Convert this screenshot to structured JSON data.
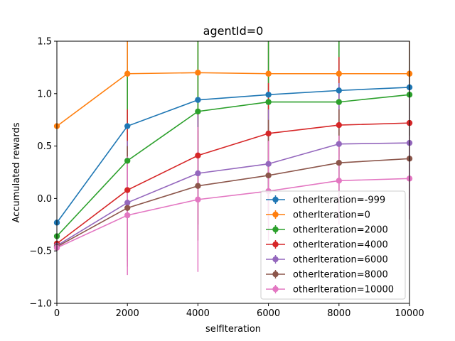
{
  "chart_data": {
    "type": "line",
    "title": "agentId=0",
    "xlabel": "selfIteration",
    "ylabel": "Accumulated rewards",
    "xlim": [
      0,
      10000
    ],
    "ylim": [
      -1.0,
      1.5
    ],
    "xticks": [
      0,
      2000,
      4000,
      6000,
      8000,
      10000
    ],
    "xtick_labels": [
      "0",
      "2000",
      "4000",
      "6000",
      "8000",
      "10000"
    ],
    "yticks": [
      -1.0,
      -0.5,
      0.0,
      0.5,
      1.0,
      1.5
    ],
    "ytick_labels": [
      "−1.0",
      "−0.5",
      "0.0",
      "0.5",
      "1.0",
      "1.5"
    ],
    "grid": false,
    "legend_position": "lower-right",
    "x": [
      0,
      2000,
      4000,
      6000,
      8000,
      10000
    ],
    "series": [
      {
        "name": "otherIteration=-999",
        "color": "#1f77b4",
        "values": [
          -0.23,
          0.69,
          0.94,
          0.99,
          1.03,
          1.06
        ],
        "lower": [
          -0.23,
          0.0,
          0.0,
          0.0,
          0.0,
          0.0
        ],
        "upper": [
          -0.23,
          1.5,
          1.5,
          1.5,
          1.5,
          1.5
        ]
      },
      {
        "name": "otherIteration=0",
        "color": "#ff7f0e",
        "values": [
          0.69,
          1.19,
          1.2,
          1.19,
          1.19,
          1.19
        ],
        "lower": [
          0.69,
          0.4,
          0.4,
          0.4,
          0.4,
          0.4
        ],
        "upper": [
          0.69,
          1.5,
          1.5,
          1.5,
          1.5,
          1.5
        ]
      },
      {
        "name": "otherIteration=2000",
        "color": "#2ca02c",
        "values": [
          -0.36,
          0.36,
          0.83,
          0.92,
          0.92,
          0.99
        ],
        "lower": [
          -0.36,
          -0.2,
          0.1,
          0.2,
          0.2,
          0.3
        ],
        "upper": [
          -0.36,
          1.2,
          1.5,
          1.5,
          1.5,
          1.5
        ]
      },
      {
        "name": "otherIteration=4000",
        "color": "#d62728",
        "values": [
          -0.43,
          0.08,
          0.41,
          0.62,
          0.7,
          0.72
        ],
        "lower": [
          -0.43,
          -0.55,
          -0.25,
          -0.1,
          0.0,
          0.0
        ],
        "upper": [
          -0.43,
          0.85,
          0.85,
          1.1,
          1.35,
          1.5
        ]
      },
      {
        "name": "otherIteration=6000",
        "color": "#9467bd",
        "values": [
          -0.45,
          -0.04,
          0.24,
          0.33,
          0.52,
          0.53
        ],
        "lower": [
          -0.45,
          -0.6,
          -0.3,
          -0.2,
          -0.1,
          -0.1
        ],
        "upper": [
          -0.45,
          0.55,
          0.8,
          0.85,
          1.1,
          1.1
        ]
      },
      {
        "name": "otherIteration=8000",
        "color": "#8c564b",
        "values": [
          -0.46,
          -0.09,
          0.12,
          0.22,
          0.34,
          0.38
        ],
        "lower": [
          -0.46,
          -0.65,
          -0.4,
          -0.3,
          -0.2,
          -0.2
        ],
        "upper": [
          -0.46,
          0.5,
          0.65,
          0.75,
          0.85,
          0.95
        ]
      },
      {
        "name": "otherIteration=10000",
        "color": "#e377c2",
        "values": [
          -0.47,
          -0.16,
          -0.01,
          0.07,
          0.17,
          0.19
        ],
        "lower": [
          -0.47,
          -0.73,
          -0.7,
          -0.4,
          -0.25,
          -0.2
        ],
        "upper": [
          -0.47,
          0.4,
          0.68,
          0.55,
          0.6,
          0.6
        ]
      }
    ]
  }
}
